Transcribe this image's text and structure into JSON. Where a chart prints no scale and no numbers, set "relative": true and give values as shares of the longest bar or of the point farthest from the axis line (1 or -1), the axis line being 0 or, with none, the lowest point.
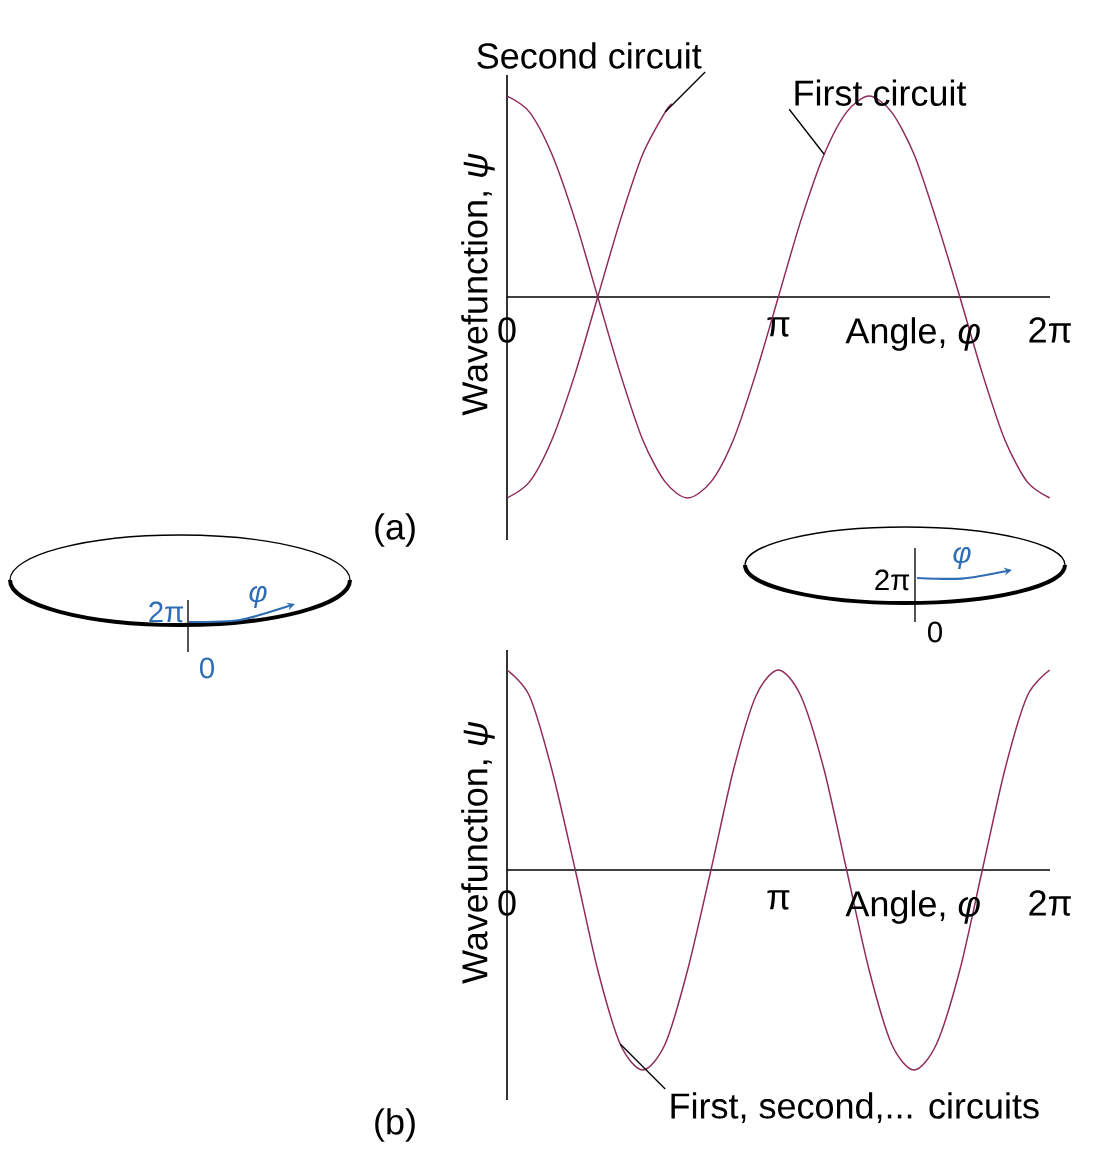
{
  "chart_data": [
    {
      "type": "line",
      "relative": true,
      "xlabel": "Angle, *φ*",
      "ylabel": "Wavefunction, *ψ*",
      "xlim": [
        0,
        6.2832
      ],
      "xticks": [
        {
          "value": 0,
          "label": "0"
        },
        {
          "value": 3.1416,
          "label": "π"
        },
        {
          "value": 6.2832,
          "label": "2π"
        }
      ],
      "annotations": [
        "(a)",
        "2π",
        "*φ*",
        "0"
      ],
      "series": [
        {
          "name": "Second circuit",
          "color": "#8e2a5a",
          "x": [
            0,
            0.26,
            0.52,
            0.79,
            1.05,
            1.31,
            1.57,
            1.83,
            1.91
          ],
          "values": [
            -1,
            -0.92,
            -0.71,
            -0.38,
            0,
            0.38,
            0.71,
            0.92,
            0.96
          ]
        },
        {
          "name": "First circuit",
          "color": "#8e2a5a",
          "x": [
            0,
            0.26,
            0.52,
            0.79,
            1.05,
            1.31,
            1.57,
            1.83,
            2.09,
            2.36,
            2.62,
            2.88,
            3.14,
            3.4,
            3.67,
            3.93,
            4.19,
            4.45,
            4.71,
            4.97,
            5.24,
            5.5,
            5.76,
            6.02,
            6.28
          ],
          "values": [
            1,
            0.92,
            0.71,
            0.38,
            0,
            -0.38,
            -0.71,
            -0.92,
            -1,
            -0.92,
            -0.71,
            -0.38,
            0,
            0.38,
            0.71,
            0.92,
            1,
            0.92,
            0.71,
            0.38,
            0,
            -0.38,
            -0.71,
            -0.92,
            -1
          ]
        }
      ]
    },
    {
      "type": "line",
      "relative": true,
      "xlabel": "Angle, *φ*",
      "ylabel": "Wavefunction, *ψ*",
      "xlim": [
        0,
        6.2832
      ],
      "xticks": [
        {
          "value": 0,
          "label": "0"
        },
        {
          "value": 3.1416,
          "label": "π"
        },
        {
          "value": 6.2832,
          "label": "2π"
        }
      ],
      "annotations": [
        "(b)",
        "2π",
        "*φ*",
        "0"
      ],
      "series": [
        {
          "name": "First, second,... circuits",
          "color": "#8e2a5a",
          "x": [
            0,
            0.26,
            0.52,
            0.79,
            1.05,
            1.31,
            1.57,
            1.83,
            2.09,
            2.36,
            2.62,
            2.88,
            3.14,
            3.4,
            3.67,
            3.93,
            4.19,
            4.45,
            4.71,
            4.97,
            5.24,
            5.5,
            5.76,
            6.02,
            6.28
          ],
          "values": [
            1,
            0.87,
            0.5,
            0,
            -0.5,
            -0.87,
            -1,
            -0.87,
            -0.5,
            0,
            0.5,
            0.87,
            1,
            0.87,
            0.5,
            0,
            -0.5,
            -0.87,
            -1,
            -0.87,
            -0.5,
            0,
            0.5,
            0.87,
            1
          ]
        }
      ]
    }
  ]
}
